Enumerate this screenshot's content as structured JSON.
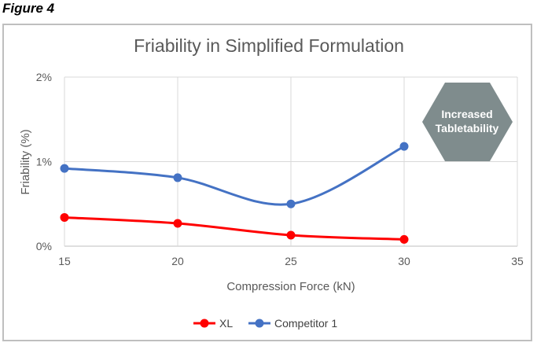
{
  "figure_label": "Figure 4",
  "chart_data": {
    "type": "line",
    "title": "Friability in Simplified Formulation",
    "xlabel": "Compression Force (kN)",
    "ylabel": "Friability (%)",
    "x_ticks": [
      15,
      20,
      25,
      30,
      35
    ],
    "y_ticks": [
      "0%",
      "1%",
      "2%"
    ],
    "xlim": [
      15,
      35
    ],
    "ylim": [
      0,
      2
    ],
    "grid": true,
    "legend_position": "bottom",
    "x": [
      15,
      20,
      25,
      30
    ],
    "series": [
      {
        "name": "XL",
        "color": "#ff0000",
        "values": [
          0.34,
          0.27,
          0.13,
          0.08
        ]
      },
      {
        "name": "Competitor 1",
        "color": "#4472c4",
        "values": [
          0.92,
          0.81,
          0.5,
          1.18
        ]
      }
    ],
    "annotation": {
      "lines": [
        "Increased",
        "Tabletability"
      ],
      "shape": "hexagon",
      "color": "#7f8c8d"
    }
  }
}
